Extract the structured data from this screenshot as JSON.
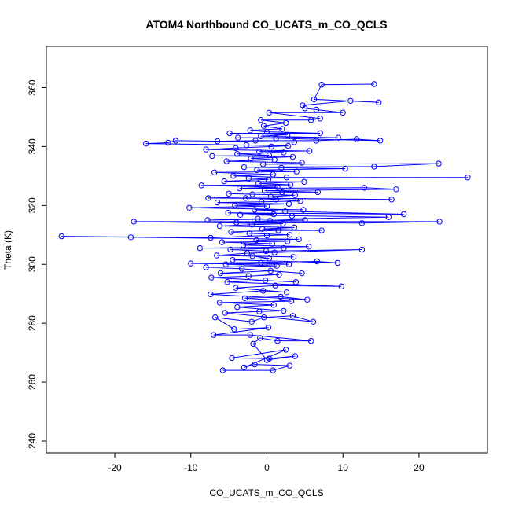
{
  "chart_data": {
    "type": "line",
    "title": "ATOM4 Northbound CO_UCATS_m_CO_QCLS",
    "xlabel": "CO_UCATS_m_CO_QCLS",
    "ylabel": "Theta (K)",
    "xlim": [
      -29,
      29
    ],
    "ylim": [
      236,
      374
    ],
    "xticks": [
      -20,
      -10,
      0,
      10,
      20
    ],
    "yticks": [
      240,
      260,
      280,
      300,
      320,
      340,
      360
    ],
    "x_tick_labels": [
      "-20",
      "-10",
      "0",
      "10",
      "20"
    ],
    "y_tick_labels": [
      "240",
      "260",
      "280",
      "300",
      "320",
      "340",
      "360"
    ],
    "grid": false,
    "marker": "open-circle",
    "color": "#0000ff",
    "series": [
      {
        "name": "CO_UCATS_m_CO_QCLS",
        "points": [
          [
            -5.8,
            264.0
          ],
          [
            0.8,
            264.0
          ],
          [
            3.0,
            265.6
          ],
          [
            -1.6,
            266.0
          ],
          [
            -3.0,
            265.0
          ],
          [
            2.5,
            271.0
          ],
          [
            -4.6,
            268.2
          ],
          [
            0.3,
            268.0
          ],
          [
            3.7,
            268.8
          ],
          [
            0.0,
            267.5
          ],
          [
            -1.8,
            273.0
          ],
          [
            -0.9,
            275.0
          ],
          [
            1.4,
            274.0
          ],
          [
            5.8,
            274.0
          ],
          [
            -2.2,
            276.0
          ],
          [
            -7.0,
            276.0
          ],
          [
            0.2,
            278.5
          ],
          [
            -4.3,
            278.0
          ],
          [
            -6.8,
            282.0
          ],
          [
            -2.0,
            280.5
          ],
          [
            -0.4,
            282.0
          ],
          [
            3.4,
            282.5
          ],
          [
            6.1,
            280.5
          ],
          [
            -5.5,
            283.5
          ],
          [
            -1.0,
            284.0
          ],
          [
            2.2,
            284.2
          ],
          [
            -3.9,
            285.5
          ],
          [
            0.9,
            286.2
          ],
          [
            -6.2,
            287.0
          ],
          [
            3.2,
            287.5
          ],
          [
            -2.9,
            288.5
          ],
          [
            1.8,
            289.0
          ],
          [
            5.3,
            288.0
          ],
          [
            -7.4,
            289.8
          ],
          [
            -0.5,
            291.0
          ],
          [
            2.6,
            290.5
          ],
          [
            -4.1,
            292.0
          ],
          [
            1.1,
            292.8
          ],
          [
            9.8,
            292.5
          ],
          [
            -5.2,
            294.0
          ],
          [
            -0.2,
            294.5
          ],
          [
            3.8,
            294.0
          ],
          [
            -7.3,
            295.5
          ],
          [
            -2.4,
            296.0
          ],
          [
            1.6,
            296.5
          ],
          [
            -6.1,
            297.0
          ],
          [
            0.5,
            297.8
          ],
          [
            4.6,
            297.0
          ],
          [
            -3.3,
            298.5
          ],
          [
            -8.0,
            299.0
          ],
          [
            1.3,
            299.5
          ],
          [
            -5.4,
            300.0
          ],
          [
            -0.8,
            300.5
          ],
          [
            2.9,
            300.0
          ],
          [
            -10.0,
            300.3
          ],
          [
            6.6,
            301.0
          ],
          [
            9.3,
            300.5
          ],
          [
            -4.5,
            301.5
          ],
          [
            0.3,
            302.0
          ],
          [
            -1.9,
            302.8
          ],
          [
            3.5,
            302.5
          ],
          [
            -6.6,
            303.0
          ],
          [
            -2.6,
            303.8
          ],
          [
            1.0,
            304.0
          ],
          [
            12.5,
            305.0
          ],
          [
            -0.1,
            304.5
          ],
          [
            -4.8,
            305.0
          ],
          [
            2.2,
            305.5
          ],
          [
            -8.8,
            305.5
          ],
          [
            5.5,
            306.0
          ],
          [
            -3.1,
            306.5
          ],
          [
            0.7,
            307.0
          ],
          [
            -5.9,
            307.5
          ],
          [
            2.7,
            307.8
          ],
          [
            -1.4,
            308.2
          ],
          [
            4.2,
            308.5
          ],
          [
            -17.9,
            309.2
          ],
          [
            -27.0,
            309.5
          ],
          [
            -7.4,
            309.0
          ],
          [
            0.0,
            309.8
          ],
          [
            3.0,
            310.0
          ],
          [
            -2.3,
            310.5
          ],
          [
            -4.7,
            311.0
          ],
          [
            1.5,
            311.5
          ],
          [
            7.2,
            311.5
          ],
          [
            -0.6,
            312.0
          ],
          [
            3.6,
            312.5
          ],
          [
            -6.2,
            313.0
          ],
          [
            -2.0,
            313.5
          ],
          [
            2.1,
            313.8
          ],
          [
            -17.5,
            314.5
          ],
          [
            22.7,
            314.5
          ],
          [
            12.5,
            314.0
          ],
          [
            -4.0,
            314.2
          ],
          [
            0.4,
            314.8
          ],
          [
            5.0,
            315.0
          ],
          [
            -1.2,
            315.5
          ],
          [
            -7.8,
            315.0
          ],
          [
            16.0,
            316.0
          ],
          [
            3.3,
            316.5
          ],
          [
            -3.5,
            316.8
          ],
          [
            0.9,
            317.0
          ],
          [
            -5.1,
            317.5
          ],
          [
            18.0,
            317.0
          ],
          [
            2.4,
            318.0
          ],
          [
            -1.6,
            318.5
          ],
          [
            4.8,
            318.5
          ],
          [
            -10.2,
            319.2
          ],
          [
            0.0,
            319.8
          ],
          [
            -4.2,
            320.0
          ],
          [
            2.9,
            320.5
          ],
          [
            -6.5,
            321.0
          ],
          [
            -0.7,
            321.2
          ],
          [
            4.4,
            321.5
          ],
          [
            1.2,
            322.0
          ],
          [
            -2.8,
            322.5
          ],
          [
            16.4,
            322.0
          ],
          [
            -7.7,
            322.5
          ],
          [
            0.5,
            323.0
          ],
          [
            3.7,
            323.5
          ],
          [
            -1.9,
            323.8
          ],
          [
            -5.0,
            324.0
          ],
          [
            2.0,
            324.5
          ],
          [
            6.7,
            324.5
          ],
          [
            -0.3,
            325.0
          ],
          [
            17.0,
            325.5
          ],
          [
            12.8,
            326.0
          ],
          [
            -3.6,
            325.8
          ],
          [
            1.4,
            326.2
          ],
          [
            -8.6,
            326.8
          ],
          [
            3.1,
            327.0
          ],
          [
            -1.1,
            327.5
          ],
          [
            4.9,
            328.0
          ],
          [
            -5.6,
            328.2
          ],
          [
            0.2,
            328.8
          ],
          [
            -2.4,
            329.2
          ],
          [
            26.4,
            329.5
          ],
          [
            2.6,
            329.5
          ],
          [
            -4.4,
            330.0
          ],
          [
            0.8,
            330.5
          ],
          [
            -6.9,
            331.2
          ],
          [
            3.9,
            331.5
          ],
          [
            -1.3,
            332.0
          ],
          [
            10.3,
            332.5
          ],
          [
            1.9,
            332.8
          ],
          [
            -3.0,
            333.0
          ],
          [
            14.1,
            333.2
          ],
          [
            22.6,
            334.2
          ],
          [
            -0.5,
            334.0
          ],
          [
            4.6,
            334.5
          ],
          [
            -5.3,
            335.0
          ],
          [
            1.0,
            335.5
          ],
          [
            -2.1,
            336.0
          ],
          [
            3.4,
            336.5
          ],
          [
            -7.2,
            336.8
          ],
          [
            0.3,
            337.0
          ],
          [
            -3.9,
            337.5
          ],
          [
            2.2,
            338.0
          ],
          [
            -1.0,
            338.3
          ],
          [
            5.6,
            338.5
          ],
          [
            -8.0,
            339.0
          ],
          [
            -4.1,
            339.5
          ],
          [
            0.6,
            340.0
          ],
          [
            2.8,
            340.2
          ],
          [
            -2.7,
            340.5
          ],
          [
            -15.9,
            341.0
          ],
          [
            -13.0,
            341.3
          ],
          [
            -12.0,
            342.0
          ],
          [
            3.6,
            341.5
          ],
          [
            -6.5,
            341.8
          ],
          [
            -1.5,
            342.0
          ],
          [
            6.5,
            342.0
          ],
          [
            11.8,
            342.5
          ],
          [
            14.9,
            342.0
          ],
          [
            1.2,
            342.8
          ],
          [
            -3.8,
            343.0
          ],
          [
            9.4,
            343.0
          ],
          [
            -0.8,
            343.5
          ],
          [
            2.7,
            344.0
          ],
          [
            -4.9,
            344.5
          ],
          [
            7.0,
            344.5
          ],
          [
            0.0,
            345.0
          ],
          [
            -2.2,
            345.5
          ],
          [
            2.0,
            346.0
          ],
          [
            -0.4,
            347.0
          ],
          [
            2.5,
            348.0
          ],
          [
            -0.8,
            349.0
          ],
          [
            5.8,
            349.0
          ],
          [
            7.0,
            349.5
          ],
          [
            0.3,
            351.5
          ],
          [
            10.0,
            351.5
          ],
          [
            6.5,
            352.5
          ],
          [
            5.0,
            353.0
          ],
          [
            4.7,
            354.0
          ],
          [
            11.0,
            355.5
          ],
          [
            14.7,
            355.0
          ],
          [
            6.2,
            356.0
          ],
          [
            7.2,
            361.0
          ],
          [
            14.1,
            361.2
          ]
        ]
      }
    ]
  }
}
